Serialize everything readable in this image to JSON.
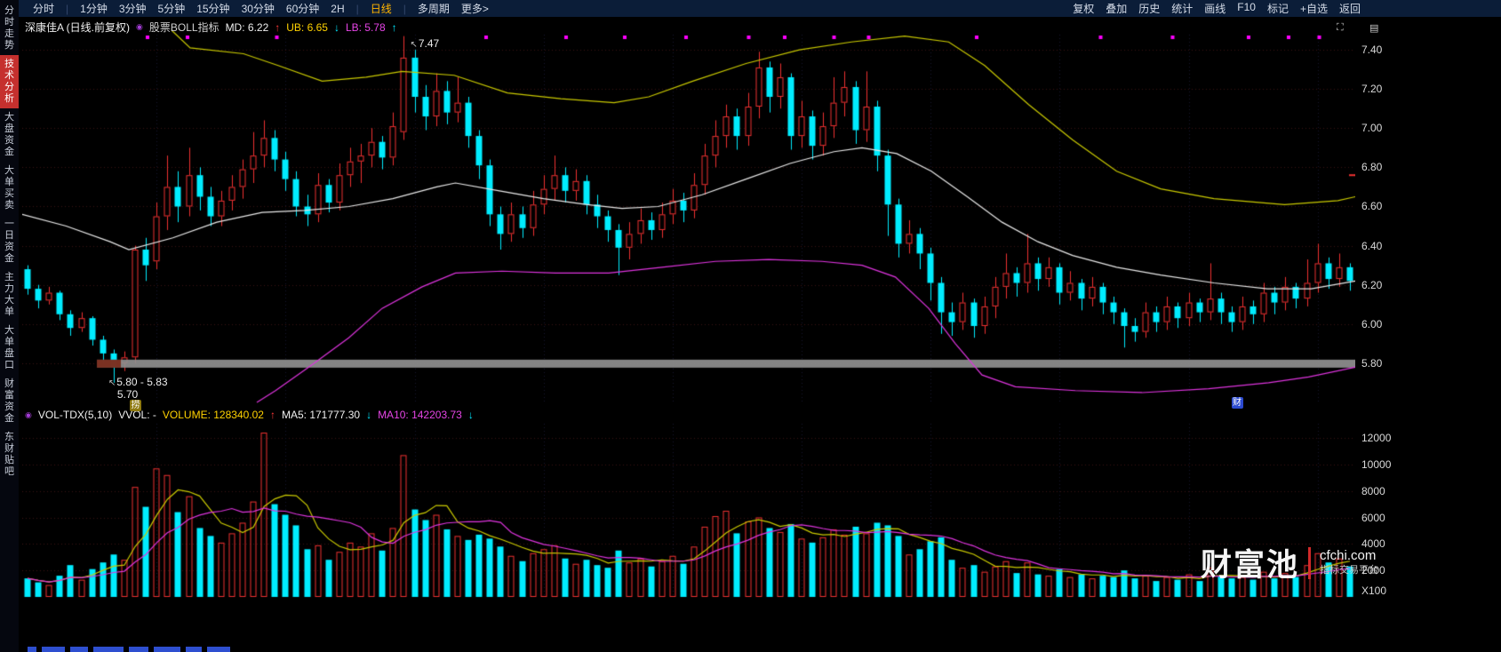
{
  "toolbar": {
    "left_groups": [
      [
        "分时"
      ],
      [
        "1分钟",
        "3分钟",
        "5分钟",
        "15分钟",
        "30分钟",
        "60分钟",
        "2H"
      ],
      [
        "日线"
      ],
      [
        "多周期",
        "更多>"
      ]
    ],
    "active": "日线",
    "right_items": [
      "复权",
      "叠加",
      "历史",
      "统计",
      "画线",
      "F10",
      "标记",
      "+自选",
      "返回"
    ]
  },
  "sidebar": {
    "items": [
      "分时走势",
      "技术分析",
      "大盘资金",
      "大单买卖",
      "一日资金",
      "主力大单",
      "大单盘口",
      "财富资金",
      "东财贴吧"
    ],
    "active_index": 1
  },
  "icons": {
    "indicator_dot": "◉",
    "expand": "⛶",
    "panel": "▤"
  },
  "price_pane": {
    "title": "深康佳A (日线.前复权)",
    "indicator_label": "股票BOLL指标",
    "values": {
      "md_text": "MD: 6.22",
      "md_arrow": "↑",
      "ub_text": "UB: 6.65",
      "ub_arrow": "↓",
      "lb_text": "LB: 5.78",
      "lb_arrow": "↑"
    },
    "annotations": {
      "high": "7.47",
      "high_arrow": "↖",
      "band_range": "5.80 - 5.83",
      "band_arrow": "↖",
      "low": "5.70",
      "badge_left": "捞",
      "badge_right": "财"
    },
    "axis": [
      "7.40",
      "7.20",
      "7.00",
      "6.80",
      "6.60",
      "6.40",
      "6.20",
      "6.00",
      "5.80"
    ]
  },
  "volume_pane": {
    "header": {
      "name": "VOL-TDX(5,10)",
      "vvol": "VVOL: -",
      "volume_text": "VOLUME: 128340.02",
      "volume_arrow": "↑",
      "ma5_text": "MA5: 171777.30",
      "ma5_arrow": "↓",
      "ma10_text": "MA10: 142203.73",
      "ma10_arrow": "↓"
    },
    "axis": [
      "12000",
      "10000",
      "8000",
      "6000",
      "4000",
      "2000"
    ],
    "unit": "X100"
  },
  "watermark": {
    "brand": "财富池",
    "domain": "cfchi.com",
    "tagline": "指标交易平台"
  },
  "colors": {
    "up": "#ee3030",
    "down": "#00ecff",
    "boll_md": "#e8e8e8",
    "boll_ub": "#c8c800",
    "boll_lb": "#dd33dd",
    "vol_ma5": "#c8c800",
    "vol_ma10": "#dd33dd",
    "band": "#8f8f8f",
    "band_accent": "#7a2a1a",
    "marker": "#ff00ff",
    "grid_h": "#381212",
    "grid_v": "#15152e"
  },
  "chart_data": {
    "type": "candlestick",
    "title": "深康佳A 日线 BOLL(20,2) 与成交量",
    "price_axis_ticks": [
      7.4,
      7.2,
      7.0,
      6.8,
      6.6,
      6.4,
      6.2,
      6.0,
      5.8
    ],
    "price_ylim": [
      5.6,
      7.55
    ],
    "volume_axis_ticks": [
      2000,
      4000,
      6000,
      8000,
      10000,
      12000
    ],
    "volume_unit": "X100",
    "band": {
      "price": 5.8,
      "start_frac": 0.056,
      "accent_end_frac": 0.074
    },
    "candles_format": "open,close,low,high,volume_x100",
    "candles": [
      [
        6.28,
        6.18,
        6.15,
        6.3,
        1400
      ],
      [
        6.18,
        6.12,
        6.08,
        6.2,
        1100
      ],
      [
        6.12,
        6.16,
        6.1,
        6.19,
        900
      ],
      [
        6.16,
        6.05,
        6.02,
        6.17,
        1600
      ],
      [
        6.05,
        5.98,
        5.94,
        6.07,
        2400
      ],
      [
        5.98,
        6.03,
        5.96,
        6.06,
        1300
      ],
      [
        6.03,
        5.92,
        5.89,
        6.04,
        2100
      ],
      [
        5.92,
        5.85,
        5.8,
        5.94,
        2600
      ],
      [
        5.85,
        5.78,
        5.7,
        5.87,
        3200
      ],
      [
        5.8,
        5.83,
        5.76,
        5.86,
        2800
      ],
      [
        5.83,
        6.38,
        5.8,
        6.4,
        8300
      ],
      [
        6.38,
        6.3,
        6.22,
        6.44,
        6800
      ],
      [
        6.32,
        6.55,
        6.28,
        6.62,
        9700
      ],
      [
        6.55,
        6.7,
        6.48,
        6.86,
        9200
      ],
      [
        6.7,
        6.6,
        6.52,
        6.78,
        6400
      ],
      [
        6.6,
        6.76,
        6.55,
        6.9,
        7600
      ],
      [
        6.76,
        6.65,
        6.58,
        6.8,
        5200
      ],
      [
        6.65,
        6.55,
        6.5,
        6.7,
        4600
      ],
      [
        6.55,
        6.63,
        6.5,
        6.68,
        4100
      ],
      [
        6.63,
        6.7,
        6.58,
        6.76,
        4800
      ],
      [
        6.7,
        6.79,
        6.64,
        6.84,
        5600
      ],
      [
        6.79,
        6.86,
        6.72,
        6.98,
        7200
      ],
      [
        6.86,
        6.95,
        6.8,
        7.04,
        12400
      ],
      [
        6.95,
        6.84,
        6.78,
        6.99,
        7000
      ],
      [
        6.84,
        6.74,
        6.68,
        6.88,
        6200
      ],
      [
        6.74,
        6.6,
        6.55,
        6.78,
        5400
      ],
      [
        6.6,
        6.56,
        6.5,
        6.66,
        3600
      ],
      [
        6.56,
        6.71,
        6.52,
        6.77,
        3900
      ],
      [
        6.71,
        6.62,
        6.57,
        6.74,
        2800
      ],
      [
        6.62,
        6.76,
        6.58,
        6.82,
        3400
      ],
      [
        6.76,
        6.83,
        6.7,
        6.9,
        4100
      ],
      [
        6.83,
        6.86,
        6.72,
        6.92,
        3800
      ],
      [
        6.86,
        6.93,
        6.8,
        7.0,
        4800
      ],
      [
        6.93,
        6.85,
        6.79,
        6.96,
        3500
      ],
      [
        6.85,
        7.01,
        6.81,
        7.08,
        5200
      ],
      [
        6.98,
        7.36,
        6.94,
        7.47,
        10700
      ],
      [
        7.36,
        7.16,
        7.08,
        7.4,
        6600
      ],
      [
        7.16,
        7.06,
        6.99,
        7.22,
        5800
      ],
      [
        7.06,
        7.19,
        7.01,
        7.28,
        6200
      ],
      [
        7.19,
        7.08,
        7.02,
        7.24,
        5100
      ],
      [
        7.08,
        7.13,
        7.03,
        7.26,
        4600
      ],
      [
        7.13,
        6.96,
        6.9,
        7.16,
        4300
      ],
      [
        6.96,
        6.81,
        6.74,
        6.99,
        4700
      ],
      [
        6.81,
        6.56,
        6.5,
        6.84,
        4400
      ],
      [
        6.56,
        6.46,
        6.38,
        6.6,
        3800
      ],
      [
        6.46,
        6.56,
        6.42,
        6.62,
        3100
      ],
      [
        6.56,
        6.49,
        6.44,
        6.6,
        2700
      ],
      [
        6.49,
        6.61,
        6.45,
        6.68,
        3300
      ],
      [
        6.61,
        6.69,
        6.56,
        6.76,
        3600
      ],
      [
        6.69,
        6.76,
        6.63,
        6.86,
        3900
      ],
      [
        6.76,
        6.68,
        6.62,
        6.8,
        2900
      ],
      [
        6.68,
        6.73,
        6.63,
        6.79,
        2500
      ],
      [
        6.73,
        6.61,
        6.56,
        6.76,
        2800
      ],
      [
        6.61,
        6.55,
        6.49,
        6.66,
        2400
      ],
      [
        6.55,
        6.48,
        6.42,
        6.58,
        2200
      ],
      [
        6.48,
        6.39,
        6.25,
        6.51,
        3500
      ],
      [
        6.39,
        6.46,
        6.33,
        6.52,
        2600
      ],
      [
        6.46,
        6.53,
        6.41,
        6.59,
        2900
      ],
      [
        6.53,
        6.48,
        6.43,
        6.57,
        2300
      ],
      [
        6.48,
        6.56,
        6.44,
        6.62,
        2700
      ],
      [
        6.56,
        6.63,
        6.51,
        6.69,
        3100
      ],
      [
        6.63,
        6.58,
        6.52,
        6.67,
        2500
      ],
      [
        6.58,
        6.71,
        6.54,
        6.77,
        3800
      ],
      [
        6.71,
        6.86,
        6.66,
        6.92,
        5300
      ],
      [
        6.86,
        6.96,
        6.8,
        7.04,
        6100
      ],
      [
        6.96,
        7.06,
        6.9,
        7.12,
        6500
      ],
      [
        7.06,
        6.96,
        6.89,
        7.1,
        4800
      ],
      [
        6.96,
        7.11,
        6.91,
        7.18,
        5700
      ],
      [
        7.11,
        7.31,
        7.05,
        7.39,
        6000
      ],
      [
        7.31,
        7.16,
        7.08,
        7.34,
        5200
      ],
      [
        7.16,
        7.26,
        7.1,
        7.33,
        4900
      ],
      [
        7.26,
        6.96,
        6.89,
        7.28,
        5500
      ],
      [
        6.96,
        7.06,
        6.9,
        7.14,
        4400
      ],
      [
        7.06,
        6.91,
        6.84,
        7.09,
        4100
      ],
      [
        6.91,
        7.01,
        6.86,
        7.08,
        4500
      ],
      [
        7.01,
        7.13,
        6.95,
        7.26,
        5100
      ],
      [
        7.13,
        7.21,
        7.06,
        7.29,
        4700
      ],
      [
        7.21,
        6.99,
        6.92,
        7.24,
        5300
      ],
      [
        6.99,
        7.11,
        6.93,
        7.29,
        4800
      ],
      [
        7.11,
        6.86,
        6.78,
        7.14,
        5600
      ],
      [
        6.86,
        6.61,
        6.45,
        6.89,
        5400
      ],
      [
        6.61,
        6.41,
        6.34,
        6.64,
        4600
      ],
      [
        6.41,
        6.46,
        6.36,
        6.53,
        3200
      ],
      [
        6.46,
        6.36,
        6.28,
        6.49,
        3600
      ],
      [
        6.36,
        6.21,
        6.12,
        6.39,
        4200
      ],
      [
        6.21,
        6.06,
        5.95,
        6.24,
        4500
      ],
      [
        6.06,
        6.01,
        5.94,
        6.11,
        2800
      ],
      [
        6.01,
        6.11,
        5.97,
        6.16,
        2200
      ],
      [
        6.11,
        5.99,
        5.93,
        6.13,
        2400
      ],
      [
        5.99,
        6.09,
        5.95,
        6.14,
        1900
      ],
      [
        6.09,
        6.19,
        6.03,
        6.24,
        2300
      ],
      [
        6.19,
        6.26,
        6.13,
        6.36,
        2700
      ],
      [
        6.26,
        6.21,
        6.14,
        6.29,
        1800
      ],
      [
        6.21,
        6.31,
        6.16,
        6.46,
        2600
      ],
      [
        6.31,
        6.23,
        6.17,
        6.34,
        1700
      ],
      [
        6.23,
        6.29,
        6.19,
        6.34,
        1600
      ],
      [
        6.29,
        6.16,
        6.1,
        6.31,
        2100
      ],
      [
        6.16,
        6.21,
        6.12,
        6.27,
        1500
      ],
      [
        6.21,
        6.13,
        6.07,
        6.23,
        1700
      ],
      [
        6.13,
        6.19,
        6.09,
        6.24,
        1400
      ],
      [
        6.19,
        6.11,
        6.05,
        6.21,
        1600
      ],
      [
        6.11,
        6.06,
        6.0,
        6.14,
        1500
      ],
      [
        6.06,
        5.99,
        5.88,
        6.08,
        2000
      ],
      [
        5.99,
        5.96,
        5.91,
        6.03,
        1400
      ],
      [
        5.96,
        6.06,
        5.93,
        6.11,
        1600
      ],
      [
        6.06,
        6.01,
        5.96,
        6.09,
        1200
      ],
      [
        6.01,
        6.09,
        5.97,
        6.14,
        1500
      ],
      [
        6.09,
        6.03,
        5.98,
        6.11,
        1300
      ],
      [
        6.03,
        6.11,
        5.99,
        6.16,
        1700
      ],
      [
        6.11,
        6.06,
        6.01,
        6.13,
        1200
      ],
      [
        6.06,
        6.13,
        6.02,
        6.31,
        2200
      ],
      [
        6.13,
        6.06,
        6.0,
        6.16,
        1600
      ],
      [
        6.06,
        6.01,
        5.96,
        6.09,
        1400
      ],
      [
        6.01,
        6.09,
        5.97,
        6.14,
        1500
      ],
      [
        6.09,
        6.05,
        6.0,
        6.12,
        1300
      ],
      [
        6.05,
        6.16,
        6.01,
        6.21,
        1900
      ],
      [
        6.16,
        6.11,
        6.05,
        6.19,
        1400
      ],
      [
        6.11,
        6.19,
        6.07,
        6.24,
        1800
      ],
      [
        6.19,
        6.13,
        6.08,
        6.21,
        1500
      ],
      [
        6.13,
        6.21,
        6.09,
        6.33,
        2400
      ],
      [
        6.21,
        6.31,
        6.16,
        6.41,
        3300
      ],
      [
        6.31,
        6.23,
        6.18,
        6.34,
        2600
      ],
      [
        6.23,
        6.29,
        6.19,
        6.36,
        2900
      ],
      [
        6.29,
        6.22,
        6.17,
        6.31,
        2300
      ]
    ],
    "boll": {
      "md": [
        [
          0,
          6.56
        ],
        [
          0.033,
          6.5
        ],
        [
          0.066,
          6.42
        ],
        [
          0.08,
          6.38
        ],
        [
          0.113,
          6.44
        ],
        [
          0.146,
          6.52
        ],
        [
          0.18,
          6.57
        ],
        [
          0.212,
          6.58
        ],
        [
          0.245,
          6.6
        ],
        [
          0.278,
          6.64
        ],
        [
          0.311,
          6.7
        ],
        [
          0.325,
          6.72
        ],
        [
          0.358,
          6.68
        ],
        [
          0.391,
          6.64
        ],
        [
          0.424,
          6.61
        ],
        [
          0.45,
          6.59
        ],
        [
          0.477,
          6.6
        ],
        [
          0.51,
          6.66
        ],
        [
          0.543,
          6.74
        ],
        [
          0.576,
          6.82
        ],
        [
          0.609,
          6.88
        ],
        [
          0.63,
          6.9
        ],
        [
          0.656,
          6.87
        ],
        [
          0.682,
          6.78
        ],
        [
          0.709,
          6.65
        ],
        [
          0.735,
          6.52
        ],
        [
          0.762,
          6.42
        ],
        [
          0.788,
          6.35
        ],
        [
          0.821,
          6.29
        ],
        [
          0.854,
          6.25
        ],
        [
          0.894,
          6.21
        ],
        [
          0.934,
          6.18
        ],
        [
          0.967,
          6.18
        ],
        [
          1,
          6.22
        ]
      ],
      "ub": [
        [
          0.112,
          7.5
        ],
        [
          0.126,
          7.41
        ],
        [
          0.166,
          7.38
        ],
        [
          0.192,
          7.32
        ],
        [
          0.225,
          7.24
        ],
        [
          0.258,
          7.26
        ],
        [
          0.285,
          7.29
        ],
        [
          0.324,
          7.27
        ],
        [
          0.364,
          7.18
        ],
        [
          0.404,
          7.15
        ],
        [
          0.444,
          7.13
        ],
        [
          0.47,
          7.16
        ],
        [
          0.503,
          7.24
        ],
        [
          0.543,
          7.33
        ],
        [
          0.583,
          7.4
        ],
        [
          0.622,
          7.44
        ],
        [
          0.662,
          7.47
        ],
        [
          0.695,
          7.44
        ],
        [
          0.722,
          7.32
        ],
        [
          0.755,
          7.12
        ],
        [
          0.788,
          6.94
        ],
        [
          0.821,
          6.78
        ],
        [
          0.854,
          6.69
        ],
        [
          0.894,
          6.64
        ],
        [
          0.947,
          6.61
        ],
        [
          0.987,
          6.63
        ],
        [
          1,
          6.65
        ]
      ],
      "lb": [
        [
          0.176,
          5.6
        ],
        [
          0.19,
          5.66
        ],
        [
          0.215,
          5.78
        ],
        [
          0.245,
          5.93
        ],
        [
          0.27,
          6.08
        ],
        [
          0.3,
          6.19
        ],
        [
          0.325,
          6.26
        ],
        [
          0.36,
          6.27
        ],
        [
          0.4,
          6.26
        ],
        [
          0.44,
          6.26
        ],
        [
          0.48,
          6.29
        ],
        [
          0.52,
          6.32
        ],
        [
          0.56,
          6.33
        ],
        [
          0.6,
          6.32
        ],
        [
          0.63,
          6.3
        ],
        [
          0.655,
          6.24
        ],
        [
          0.68,
          6.08
        ],
        [
          0.7,
          5.9
        ],
        [
          0.72,
          5.74
        ],
        [
          0.745,
          5.68
        ],
        [
          0.79,
          5.66
        ],
        [
          0.84,
          5.65
        ],
        [
          0.89,
          5.67
        ],
        [
          0.935,
          5.7
        ],
        [
          0.965,
          5.73
        ],
        [
          1,
          5.78
        ]
      ]
    },
    "signal_marker_x": [
      0.094,
      0.124,
      0.191,
      0.348,
      0.408,
      0.452,
      0.498,
      0.545,
      0.572,
      0.609,
      0.635,
      0.716,
      0.809,
      0.863,
      0.92,
      0.95,
      0.973
    ],
    "vol": {
      "ma_windows": [
        5,
        10
      ],
      "axis_max": 12000
    }
  }
}
